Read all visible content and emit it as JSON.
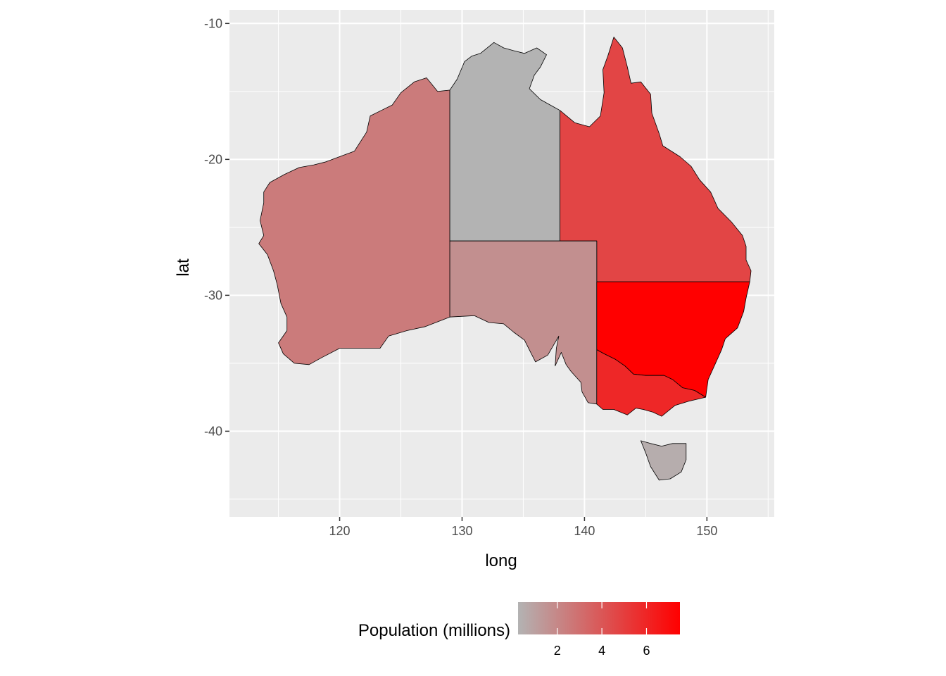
{
  "chart_data": {
    "type": "choropleth-map",
    "title": "",
    "xlabel": "long",
    "ylabel": "lat",
    "xlim": [
      111,
      155.5
    ],
    "ylim": [
      -46.3,
      -9
    ],
    "x_ticks": [
      120,
      130,
      140,
      150
    ],
    "y_ticks": [
      -10,
      -20,
      -30,
      -40
    ],
    "grid": true,
    "panel_background": "#ebebeb",
    "grid_color": "#ffffff",
    "legend": {
      "title": "Population (millions)",
      "position": "bottom",
      "min": 0.24,
      "max": 7.5,
      "ticks": [
        2,
        4,
        6
      ],
      "low_color": "#b3b3b3",
      "high_color": "#ff0000"
    },
    "regions": [
      {
        "name": "Western Australia",
        "population": 2.5
      },
      {
        "name": "Northern Territory",
        "population": 0.24
      },
      {
        "name": "Queensland",
        "population": 4.7
      },
      {
        "name": "South Australia",
        "population": 1.7
      },
      {
        "name": "New South Wales",
        "population": 7.5
      },
      {
        "name": "Victoria",
        "population": 5.9
      },
      {
        "name": "Tasmania",
        "population": 0.5
      }
    ]
  }
}
